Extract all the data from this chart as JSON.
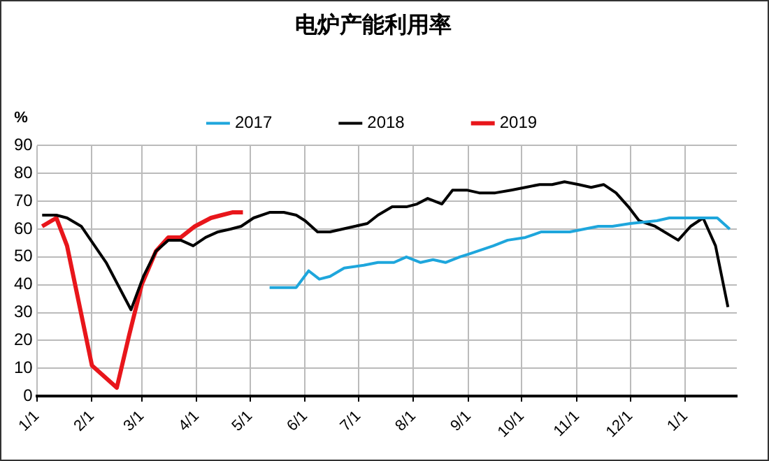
{
  "chart_data": {
    "type": "line",
    "title": "电炉产能利用率",
    "ylabel": "%",
    "xlim": [
      "2018-01-01",
      "2019-01-30"
    ],
    "xticks": [
      {
        "value": "2018-01-01",
        "label": "1/1"
      },
      {
        "value": "2018-02-01",
        "label": "2/1"
      },
      {
        "value": "2018-03-01",
        "label": "3/1"
      },
      {
        "value": "2018-04-01",
        "label": "4/1"
      },
      {
        "value": "2018-05-01",
        "label": "5/1"
      },
      {
        "value": "2018-06-01",
        "label": "6/1"
      },
      {
        "value": "2018-07-01",
        "label": "7/1"
      },
      {
        "value": "2018-08-01",
        "label": "8/1"
      },
      {
        "value": "2018-09-01",
        "label": "9/1"
      },
      {
        "value": "2018-10-01",
        "label": "10/1"
      },
      {
        "value": "2018-11-01",
        "label": "11/1"
      },
      {
        "value": "2018-12-01",
        "label": "12/1"
      },
      {
        "value": "2019-01-01",
        "label": "1/1"
      }
    ],
    "ylim": [
      0,
      90
    ],
    "yticks": [
      0,
      10,
      20,
      30,
      40,
      50,
      60,
      70,
      80,
      90
    ],
    "grid": true,
    "legend": "top",
    "marker": "none",
    "line_style": "solid",
    "series": [
      {
        "name": "2017",
        "color": "#1ea6dc",
        "x": [
          "2018-05-12",
          "2018-05-27",
          "2018-06-03",
          "2018-06-09",
          "2018-06-15",
          "2018-06-23",
          "2018-07-04",
          "2018-07-12",
          "2018-07-21",
          "2018-07-28",
          "2018-08-05",
          "2018-08-12",
          "2018-08-19",
          "2018-08-27",
          "2018-09-01",
          "2018-09-15",
          "2018-09-23",
          "2018-10-03",
          "2018-10-12",
          "2018-10-28",
          "2018-11-05",
          "2018-11-13",
          "2018-11-21",
          "2018-12-01",
          "2018-12-16",
          "2018-12-23",
          "2019-01-07",
          "2019-01-15",
          "2019-01-19",
          "2019-01-26"
        ],
        "values": [
          39,
          39,
          45,
          42,
          43,
          46,
          47,
          48,
          48,
          50,
          48,
          49,
          48,
          50,
          51,
          54,
          56,
          57,
          59,
          59,
          60,
          61,
          61,
          62,
          63,
          64,
          64,
          64,
          64,
          60
        ]
      },
      {
        "name": "2018",
        "color": "#000000",
        "x": [
          "2018-01-04",
          "2018-01-12",
          "2018-01-18",
          "2018-01-26",
          "2018-02-09",
          "2018-02-23",
          "2018-03-02",
          "2018-03-09",
          "2018-03-16",
          "2018-03-23",
          "2018-03-30",
          "2018-04-06",
          "2018-04-13",
          "2018-04-20",
          "2018-04-26",
          "2018-05-03",
          "2018-05-12",
          "2018-05-20",
          "2018-05-27",
          "2018-06-01",
          "2018-06-08",
          "2018-06-15",
          "2018-06-22",
          "2018-06-29",
          "2018-07-06",
          "2018-07-12",
          "2018-07-20",
          "2018-07-28",
          "2018-08-03",
          "2018-08-09",
          "2018-08-17",
          "2018-08-23",
          "2018-08-31",
          "2018-09-07",
          "2018-09-16",
          "2018-09-25",
          "2018-10-03",
          "2018-10-11",
          "2018-10-18",
          "2018-10-25",
          "2018-11-02",
          "2018-11-09",
          "2018-11-16",
          "2018-11-23",
          "2018-11-30",
          "2018-12-06",
          "2018-12-15",
          "2018-12-28",
          "2019-01-04",
          "2019-01-11",
          "2019-01-18",
          "2019-01-25"
        ],
        "values": [
          65,
          65,
          64,
          61,
          48,
          31,
          43,
          52,
          56,
          56,
          54,
          57,
          59,
          60,
          61,
          64,
          66,
          66,
          65,
          63,
          59,
          59,
          60,
          61,
          62,
          65,
          68,
          68,
          69,
          71,
          69,
          74,
          74,
          73,
          73,
          74,
          75,
          76,
          76,
          77,
          76,
          75,
          76,
          73,
          68,
          63,
          61,
          56,
          61,
          64,
          54,
          32
        ]
      },
      {
        "name": "2019",
        "color": "#e8161b",
        "x": [
          "2018-01-04",
          "2018-01-12",
          "2018-01-18",
          "2018-02-01",
          "2018-02-15",
          "2018-02-22",
          "2018-03-01",
          "2018-03-09",
          "2018-03-16",
          "2018-03-23",
          "2018-03-31",
          "2018-04-09",
          "2018-04-15",
          "2018-04-21",
          "2018-04-27"
        ],
        "values": [
          61,
          64,
          54,
          11,
          3,
          22,
          40,
          52,
          57,
          57,
          61,
          64,
          65,
          66,
          66
        ]
      }
    ]
  }
}
